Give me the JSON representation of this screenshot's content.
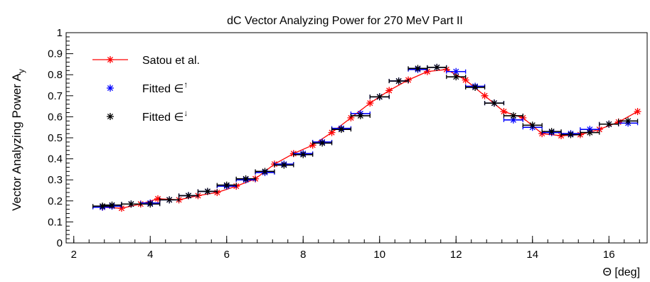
{
  "chart_data": {
    "type": "scatter",
    "title": "dC Vector Analyzing Power for 270 MeV Part II",
    "xlabel": "Θ [deg]",
    "ylabel": "Vector Analyzing Power A",
    "ylabel_subscript": "y",
    "xlim": [
      1.8,
      17.0
    ],
    "ylim": [
      0,
      1
    ],
    "x_ticks": [
      2,
      4,
      6,
      8,
      10,
      12,
      14,
      16
    ],
    "y_ticks": [
      0,
      0.1,
      0.2,
      0.3,
      0.4,
      0.5,
      0.6,
      0.7,
      0.8,
      0.9,
      1
    ],
    "x_tick_labels": [
      "2",
      "4",
      "6",
      "8",
      "10",
      "12",
      "14",
      "16"
    ],
    "y_tick_labels": [
      "0",
      "0.1",
      "0.2",
      "0.3",
      "0.4",
      "0.5",
      "0.6",
      "0.7",
      "0.8",
      "0.9",
      "1"
    ],
    "grid": false,
    "legend_position": "top-left",
    "series": [
      {
        "name": "Satou et al.",
        "legend_label": "Satou et al.",
        "color": "#ff0000",
        "marker": "asterisk",
        "line": true,
        "x": [
          2.75,
          3.25,
          3.75,
          4.2,
          4.75,
          5.25,
          5.75,
          6.25,
          6.75,
          7.25,
          7.75,
          8.25,
          8.75,
          9.25,
          9.75,
          10.25,
          10.75,
          11.25,
          11.75,
          12.25,
          12.75,
          13.25,
          13.75,
          14.25,
          14.75,
          15.25,
          15.75,
          16.25,
          16.75
        ],
        "y": [
          0.17,
          0.165,
          0.185,
          0.21,
          0.205,
          0.225,
          0.24,
          0.27,
          0.305,
          0.375,
          0.425,
          0.465,
          0.525,
          0.595,
          0.665,
          0.725,
          0.775,
          0.815,
          0.825,
          0.775,
          0.7,
          0.625,
          0.595,
          0.52,
          0.51,
          0.515,
          0.54,
          0.575,
          0.625
        ]
      },
      {
        "name": "Fitted ∈↑",
        "legend_label": "Fitted ∈",
        "legend_superscript": "↑",
        "color": "#0000ff",
        "marker": "asterisk",
        "line": false,
        "x_error": 0.25,
        "x": [
          2.75,
          3.0,
          3.5,
          4.0,
          4.5,
          5.0,
          5.5,
          6.0,
          6.5,
          7.0,
          7.5,
          8.0,
          8.5,
          9.0,
          9.5,
          10.0,
          10.5,
          11.0,
          11.5,
          12.0,
          12.5,
          13.0,
          13.5,
          14.0,
          14.5,
          15.0,
          15.5,
          16.0,
          16.5
        ],
        "y": [
          0.17,
          0.175,
          0.185,
          0.19,
          0.205,
          0.225,
          0.245,
          0.27,
          0.3,
          0.335,
          0.375,
          0.425,
          0.48,
          0.545,
          0.615,
          0.695,
          0.77,
          0.825,
          0.835,
          0.815,
          0.745,
          0.665,
          0.585,
          0.55,
          0.525,
          0.52,
          0.54,
          0.565,
          0.57
        ]
      },
      {
        "name": "Fitted ∈↓",
        "legend_label": "Fitted ∈",
        "legend_superscript": "↓",
        "color": "#000000",
        "marker": "asterisk",
        "line": false,
        "x_error": 0.25,
        "x": [
          2.75,
          3.0,
          3.5,
          4.0,
          4.5,
          5.0,
          5.5,
          6.0,
          6.5,
          7.0,
          7.5,
          8.0,
          8.5,
          9.0,
          9.5,
          10.0,
          10.5,
          11.0,
          11.5,
          12.0,
          12.5,
          13.0,
          13.5,
          14.0,
          14.5,
          15.0,
          15.5,
          16.0,
          16.5
        ],
        "y": [
          0.175,
          0.18,
          0.185,
          0.185,
          0.205,
          0.225,
          0.245,
          0.275,
          0.305,
          0.34,
          0.37,
          0.42,
          0.475,
          0.54,
          0.605,
          0.695,
          0.77,
          0.83,
          0.835,
          0.79,
          0.74,
          0.665,
          0.605,
          0.56,
          0.53,
          0.515,
          0.525,
          0.565,
          0.58
        ]
      }
    ]
  }
}
